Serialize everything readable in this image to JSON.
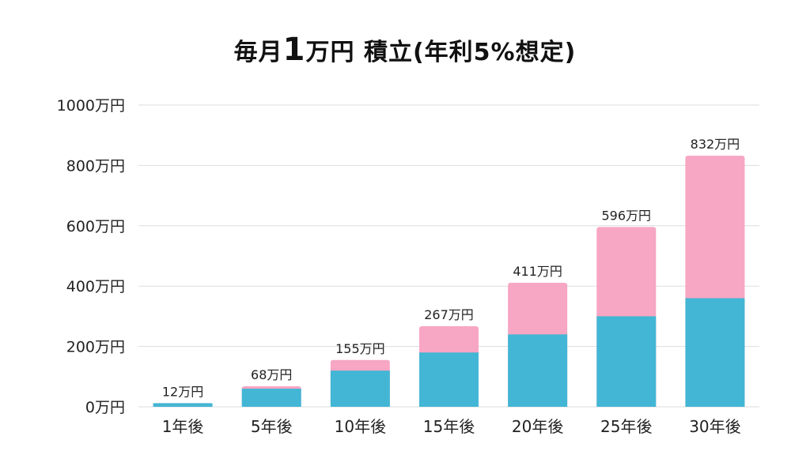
{
  "title": {
    "pre": "毎月",
    "num": "1",
    "post": "万円 積立(年利5%想定)"
  },
  "colors": {
    "principal": "#43b6d5",
    "gain": "#f7a6c3",
    "grid": "#dddddd"
  },
  "chart_data": {
    "type": "bar",
    "stacked": true,
    "categories": [
      "1年後",
      "5年後",
      "10年後",
      "15年後",
      "20年後",
      "25年後",
      "30年後"
    ],
    "series": [
      {
        "values": [
          12,
          60,
          120,
          180,
          240,
          300,
          360
        ]
      },
      {
        "values": [
          0,
          8,
          35,
          87,
          171,
          296,
          472
        ]
      }
    ],
    "totals": [
      12,
      68,
      155,
      267,
      411,
      596,
      832
    ],
    "data_labels": [
      "12万円",
      "68万円",
      "155万円",
      "267万円",
      "411万円",
      "596万円",
      "832万円"
    ],
    "y_ticks": [
      0,
      200,
      400,
      600,
      800,
      1000
    ],
    "y_tick_labels": [
      "0万円",
      "200万円",
      "400万円",
      "600万円",
      "800万円",
      "1000万円"
    ],
    "ylim": [
      0,
      1000
    ],
    "grid": true,
    "legend": "none"
  }
}
